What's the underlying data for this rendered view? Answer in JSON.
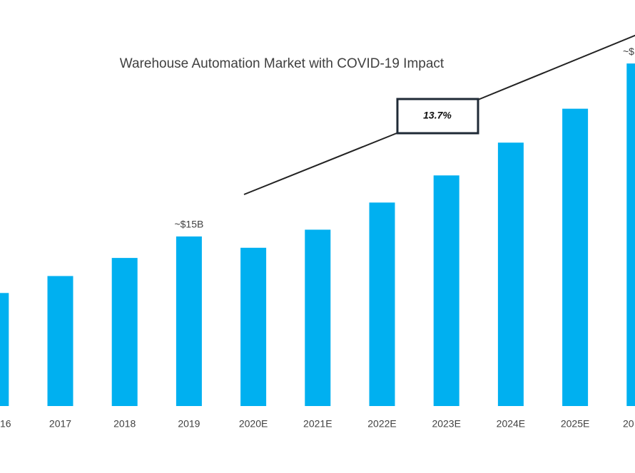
{
  "chart_data": {
    "type": "bar",
    "title": "Warehouse Automation Market with COVID-19 Impact",
    "categories": [
      "16",
      "2017",
      "2018",
      "2019",
      "2020E",
      "2021E",
      "2022E",
      "2023E",
      "2024E",
      "2025E",
      "20"
    ],
    "values": [
      10.0,
      11.5,
      13.1,
      15.0,
      14.0,
      15.6,
      18.0,
      20.4,
      23.3,
      26.3,
      30.3
    ],
    "value_labels": [
      null,
      null,
      null,
      "~$15B",
      null,
      null,
      null,
      null,
      null,
      null,
      "~$"
    ],
    "color": "#00b0f0",
    "annotation": "13.7%"
  }
}
